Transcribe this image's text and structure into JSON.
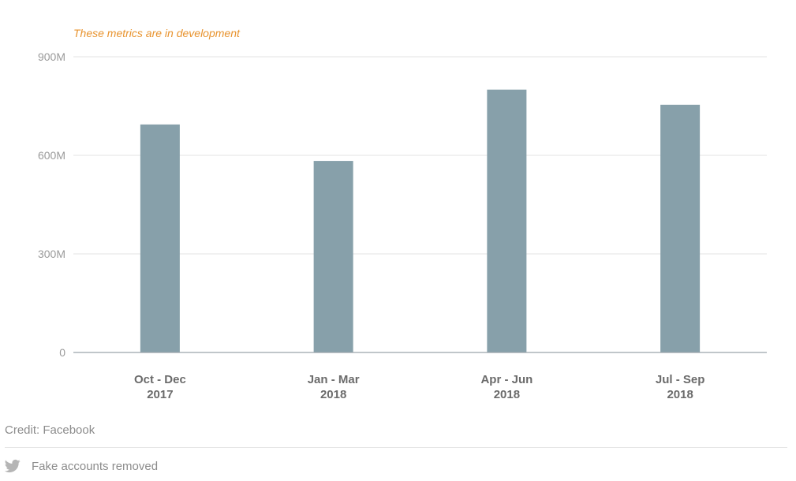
{
  "chart_data": {
    "type": "bar",
    "annotation": "These metrics are in development",
    "categories": [
      [
        "Oct - Dec",
        "2017"
      ],
      [
        "Jan - Mar",
        "2018"
      ],
      [
        "Apr - Jun",
        "2018"
      ],
      [
        "Jul - Sep",
        "2018"
      ]
    ],
    "values": [
      694,
      583,
      800,
      754
    ],
    "unit": "M",
    "ylim": [
      0,
      900
    ],
    "yticks": [
      0,
      300,
      600,
      900
    ],
    "ytick_labels": [
      "0",
      "300M",
      "600M",
      "900M"
    ],
    "grid": true,
    "colors": {
      "bar": "#87a0aa",
      "grid": "#e3e3e3",
      "axis": "#9aa4aa",
      "annotation": "#e8932e"
    }
  },
  "footer": {
    "credit": "Credit: Facebook",
    "tweet_label": "Fake accounts removed",
    "tweet_icon": "twitter-bird-icon"
  }
}
